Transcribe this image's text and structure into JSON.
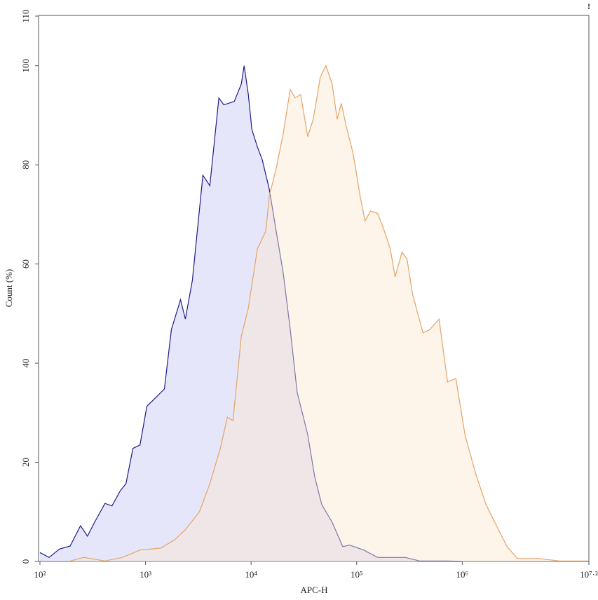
{
  "chart_data": {
    "type": "histogram-overlay",
    "x_label": "APC-H",
    "y_label": "Count (%)",
    "corner_mark": "!",
    "log_x": true,
    "xlim": [
      100,
      15848932
    ],
    "ylim": [
      0,
      110
    ],
    "xticks": [
      {
        "value": 100,
        "label": "10²"
      },
      {
        "value": 1000,
        "label": "10³"
      },
      {
        "value": 10000,
        "label": "10⁴"
      },
      {
        "value": 100000,
        "label": "10⁵"
      },
      {
        "value": 1000000,
        "label": "10⁶"
      },
      {
        "value": 15848932,
        "label": "10⁷·²"
      }
    ],
    "yticks": [
      0,
      20,
      40,
      60,
      80,
      100,
      110
    ],
    "series": [
      {
        "color": "#1c1c8a",
        "fill": "#c8c8f5",
        "x": [
          100,
          122,
          153,
          193,
          242,
          282,
          329,
          413,
          481,
          578,
          653,
          760,
          886,
          1030,
          1297,
          1510,
          1758,
          2144,
          2385,
          2779,
          3494,
          4067,
          4955,
          5520,
          6936,
          8075,
          8589,
          9418,
          10170,
          11480,
          12770,
          14870,
          17310,
          20180,
          23490,
          27350,
          34380,
          40060,
          46650,
          58650,
          73810,
          85900,
          116400,
          158100,
          291000,
          394500,
          726100,
          984000
        ],
        "values": [
          1.8,
          0.8,
          2.5,
          3.1,
          7.2,
          5.1,
          7.9,
          11.7,
          11.2,
          14.3,
          15.7,
          22.8,
          23.5,
          31.3,
          33.4,
          34.8,
          46.8,
          52.8,
          48.9,
          56.7,
          77.9,
          75.8,
          93.5,
          92.1,
          92.8,
          96.3,
          100,
          94.2,
          87.1,
          83.6,
          81,
          75.1,
          66.6,
          58.1,
          46.8,
          34.1,
          25.6,
          17.1,
          11.5,
          7.9,
          3,
          3.3,
          2.3,
          0.8,
          0.8,
          0.1,
          0.1,
          0
        ]
      },
      {
        "color": "#e3a468",
        "fill": "#fbe6d0",
        "x": [
          193,
          261,
          413,
          604,
          886,
          1399,
          1897,
          2385,
          3236,
          4067,
          5117,
          5957,
          6730,
          8075,
          9418,
          11480,
          13770,
          14870,
          17310,
          20180,
          23490,
          26120,
          29510,
          34380,
          38810,
          45290,
          51170,
          58650,
          65300,
          71500,
          79660,
          92700,
          107900,
          120000,
          135600,
          158100,
          178600,
          208000,
          231300,
          269400,
          299900,
          338800,
          425600,
          495600,
          604000,
          726100,
          871000,
          1062000,
          1336000,
          1679000,
          2112000,
          2655000,
          3337000,
          5270000,
          8337000,
          15310000
        ],
        "values": [
          0.1,
          0.8,
          0.1,
          0.8,
          2.3,
          2.7,
          4.4,
          6.4,
          10,
          15.7,
          22.8,
          29.1,
          28.4,
          45.4,
          51.1,
          63.1,
          66.6,
          73.7,
          79.3,
          86.4,
          95.2,
          93.5,
          94.2,
          85.7,
          89.2,
          97.7,
          100,
          96.3,
          89.2,
          92.4,
          87.8,
          82.2,
          73.7,
          68.7,
          70.7,
          70.2,
          67.3,
          63.1,
          57.4,
          62.4,
          61,
          53.9,
          46.1,
          46.8,
          48.9,
          36.2,
          36.9,
          25.6,
          17.8,
          11.5,
          7.2,
          3,
          0.6,
          0.6,
          0.1,
          0.1
        ]
      }
    ]
  }
}
